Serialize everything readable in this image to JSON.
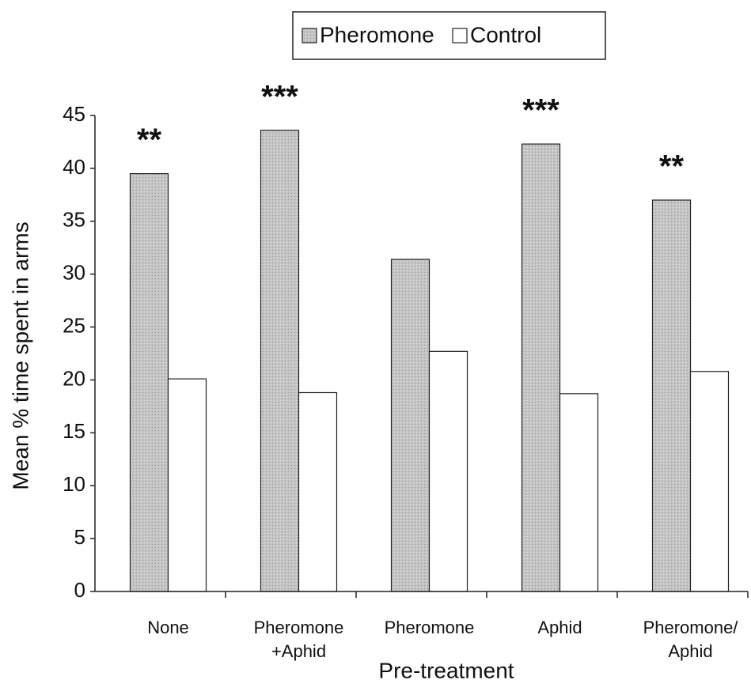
{
  "chart_data": {
    "type": "bar",
    "xlabel": "Pre-treatment",
    "ylabel": "Mean % time spent in arms",
    "categories": [
      "None",
      "Pheromone +Aphid",
      "Pheromone",
      "Aphid",
      "Pheromone/ Aphid"
    ],
    "series": [
      {
        "name": "Pheromone",
        "color": "#c4c4c4",
        "values": [
          39.5,
          43.6,
          31.4,
          42.3,
          37.0
        ]
      },
      {
        "name": "Control",
        "color": "#ffffff",
        "values": [
          20.1,
          18.8,
          22.7,
          18.7,
          20.8
        ]
      }
    ],
    "annotations": [
      "**",
      "***",
      null,
      "***",
      "**"
    ],
    "ylim": [
      0,
      45
    ],
    "yticks": [
      0,
      5,
      10,
      15,
      20,
      25,
      30,
      35,
      40,
      45
    ],
    "legend": "top"
  }
}
